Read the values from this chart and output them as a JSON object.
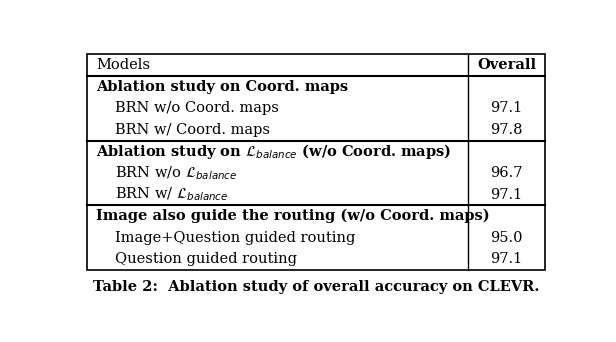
{
  "title": "Table 2:  Ablation study of overall accuracy on CLEVR.",
  "header": [
    "Models",
    "Overall"
  ],
  "sections": [
    {
      "section_header": "Ablation study on Coord. maps",
      "rows": [
        {
          "model": "BRN w/o Coord. maps",
          "value": "97.1"
        },
        {
          "model": "BRN w/ Coord. maps",
          "value": "97.8"
        }
      ]
    },
    {
      "section_header": "Ablation study on $\\mathcal{L}_{balance}$ (w/o Coord. maps)",
      "rows": [
        {
          "model": "BRN w/o $\\mathcal{L}_{balance}$",
          "value": "96.7"
        },
        {
          "model": "BRN w/ $\\mathcal{L}_{balance}$",
          "value": "97.1"
        }
      ]
    },
    {
      "section_header": "Image also guide the routing (w/o Coord. maps)",
      "rows": [
        {
          "model": "Image+Question guided routing",
          "value": "95.0"
        },
        {
          "model": "Question guided routing",
          "value": "97.1"
        }
      ]
    }
  ],
  "col_split": 0.82,
  "bg_color": "#ffffff",
  "text_color": "#000000",
  "line_color": "#000000",
  "header_fontsize": 10.5,
  "body_fontsize": 10.5,
  "caption_fontsize": 10.5
}
